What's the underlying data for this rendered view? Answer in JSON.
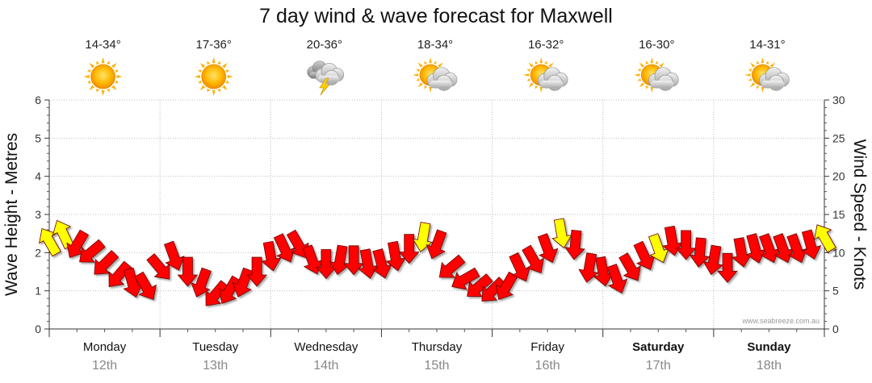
{
  "chart_data": {
    "type": "line",
    "title": "7 day wind & wave forecast for Maxwell",
    "ylabel_left": "Wave Height - Metres",
    "ylabel_right": "Wind Speed - Knots",
    "ylim_left": [
      0,
      6
    ],
    "ylim_right": [
      0,
      30
    ],
    "yticks_left": [
      "0",
      "1",
      "2",
      "3",
      "4",
      "5",
      "6"
    ],
    "yticks_right": [
      "0",
      "5",
      "10",
      "15",
      "20",
      "25",
      "30"
    ],
    "credit": "www.seabreeze.com.au",
    "days": [
      {
        "day": "Monday",
        "date": "12th",
        "temp": "14-34°",
        "icon": "sun-icon",
        "bold": false
      },
      {
        "day": "Tuesday",
        "date": "13th",
        "temp": "17-36°",
        "icon": "sun-icon",
        "bold": false
      },
      {
        "day": "Wednesday",
        "date": "14th",
        "temp": "20-36°",
        "icon": "storm-cloud-icon",
        "bold": false
      },
      {
        "day": "Thursday",
        "date": "15th",
        "temp": "18-34°",
        "icon": "partly-cloudy-icon",
        "bold": false
      },
      {
        "day": "Friday",
        "date": "16th",
        "temp": "16-32°",
        "icon": "partly-cloudy-icon",
        "bold": false
      },
      {
        "day": "Saturday",
        "date": "17th",
        "temp": "16-30°",
        "icon": "partly-cloudy-icon",
        "bold": true
      },
      {
        "day": "Sunday",
        "date": "18th",
        "temp": "14-31°",
        "icon": "partly-cloudy-icon",
        "bold": true
      }
    ],
    "wind_series": {
      "name": "Wind",
      "x_hours": [
        0,
        3,
        6,
        9,
        12,
        15,
        18,
        21,
        24,
        27,
        30,
        33,
        36,
        39,
        42,
        45,
        48,
        51,
        54,
        57,
        60,
        63,
        66,
        69,
        72,
        75,
        78,
        81,
        84,
        87,
        90,
        93,
        96,
        99,
        102,
        105,
        108,
        111,
        114,
        117,
        120,
        123,
        126,
        129,
        132,
        135,
        138,
        141,
        144,
        147,
        150,
        153,
        156,
        159,
        162,
        165,
        168
      ],
      "speed_knots": [
        11.5,
        12.5,
        11,
        10,
        8.5,
        7,
        6,
        5.5,
        8,
        9.5,
        7.5,
        6,
        4.5,
        5,
        6,
        7.5,
        9.5,
        10.5,
        11,
        9,
        8.5,
        9,
        9,
        8.5,
        8.5,
        9.5,
        10.5,
        12,
        11,
        8,
        6.5,
        5.5,
        5,
        5.5,
        8,
        9,
        10.5,
        12.5,
        11,
        8,
        7.5,
        6.5,
        8,
        9.5,
        10.5,
        11.5,
        11,
        10,
        9,
        8,
        10,
        10.5,
        10.5,
        10.5,
        10.5,
        11,
        12
      ],
      "direction_deg": [
        60,
        65,
        300,
        320,
        315,
        310,
        255,
        240,
        230,
        250,
        270,
        290,
        310,
        300,
        290,
        270,
        260,
        245,
        240,
        250,
        270,
        280,
        270,
        260,
        255,
        260,
        270,
        280,
        290,
        320,
        330,
        320,
        315,
        300,
        245,
        240,
        250,
        260,
        275,
        280,
        260,
        250,
        240,
        245,
        250,
        260,
        270,
        275,
        280,
        270,
        260,
        255,
        250,
        250,
        250,
        255,
        60
      ],
      "strong_flags": [
        true,
        true,
        false,
        false,
        false,
        false,
        false,
        false,
        false,
        false,
        false,
        false,
        false,
        false,
        false,
        false,
        false,
        false,
        false,
        false,
        false,
        false,
        false,
        false,
        false,
        false,
        false,
        true,
        false,
        false,
        false,
        false,
        false,
        false,
        false,
        false,
        false,
        true,
        false,
        false,
        false,
        false,
        false,
        false,
        true,
        false,
        false,
        false,
        false,
        false,
        false,
        false,
        false,
        false,
        false,
        false,
        true
      ]
    }
  }
}
